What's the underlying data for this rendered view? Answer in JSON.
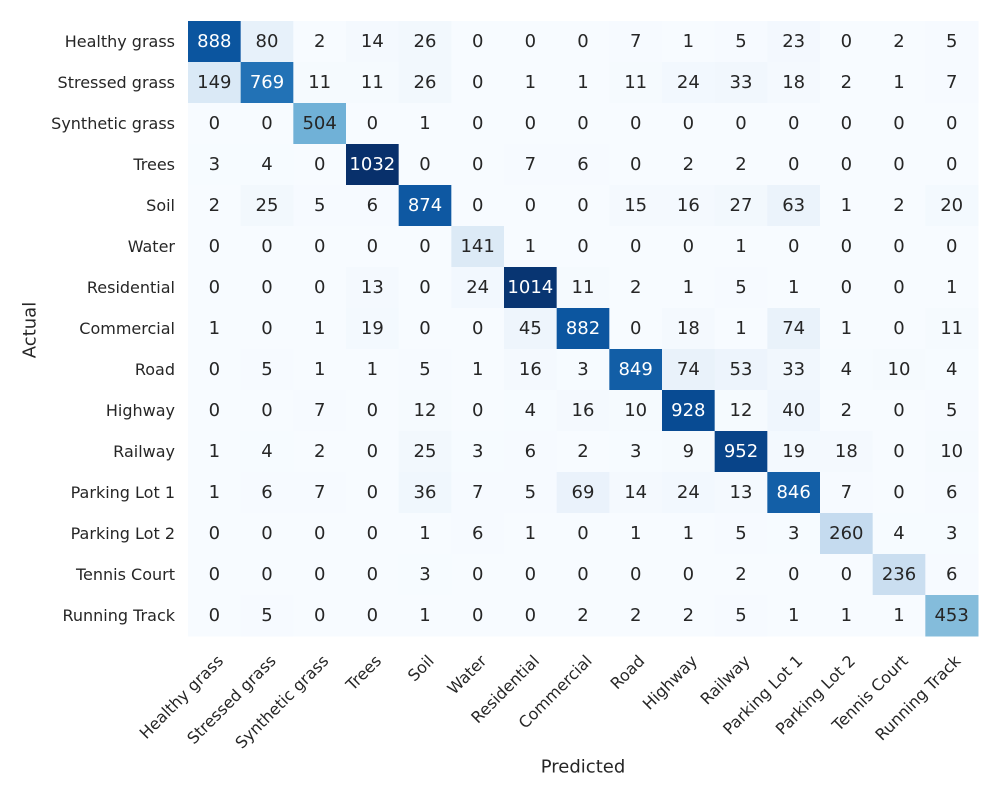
{
  "chart_data": {
    "type": "heatmap",
    "title": "",
    "xlabel": "Predicted",
    "ylabel": "Actual",
    "colormap": "Blues",
    "color_low": "#f7fbff",
    "color_high": "#08306b",
    "labels": [
      "Healthy grass",
      "Stressed grass",
      "Synthetic grass",
      "Trees",
      "Soil",
      "Water",
      "Residential",
      "Commercial",
      "Road",
      "Highway",
      "Railway",
      "Parking Lot 1",
      "Parking Lot 2",
      "Tennis Court",
      "Running Track"
    ],
    "matrix": [
      [
        888,
        80,
        2,
        14,
        26,
        0,
        0,
        0,
        7,
        1,
        5,
        23,
        0,
        2,
        5
      ],
      [
        149,
        769,
        11,
        11,
        26,
        0,
        1,
        1,
        11,
        24,
        33,
        18,
        2,
        1,
        7
      ],
      [
        0,
        0,
        504,
        0,
        1,
        0,
        0,
        0,
        0,
        0,
        0,
        0,
        0,
        0,
        0
      ],
      [
        3,
        4,
        0,
        1032,
        0,
        0,
        7,
        6,
        0,
        2,
        2,
        0,
        0,
        0,
        0
      ],
      [
        2,
        25,
        5,
        6,
        874,
        0,
        0,
        0,
        15,
        16,
        27,
        63,
        1,
        2,
        20
      ],
      [
        0,
        0,
        0,
        0,
        0,
        141,
        1,
        0,
        0,
        0,
        1,
        0,
        0,
        0,
        0
      ],
      [
        0,
        0,
        0,
        13,
        0,
        24,
        1014,
        11,
        2,
        1,
        5,
        1,
        0,
        0,
        1
      ],
      [
        1,
        0,
        1,
        19,
        0,
        0,
        45,
        882,
        0,
        18,
        1,
        74,
        1,
        0,
        11
      ],
      [
        0,
        5,
        1,
        1,
        5,
        1,
        16,
        3,
        849,
        74,
        53,
        33,
        4,
        10,
        4
      ],
      [
        0,
        0,
        7,
        0,
        12,
        0,
        4,
        16,
        10,
        928,
        12,
        40,
        2,
        0,
        5
      ],
      [
        1,
        4,
        2,
        0,
        25,
        3,
        6,
        2,
        3,
        9,
        952,
        19,
        18,
        0,
        10
      ],
      [
        1,
        6,
        7,
        0,
        36,
        7,
        5,
        69,
        14,
        24,
        13,
        846,
        7,
        0,
        6
      ],
      [
        0,
        0,
        0,
        0,
        1,
        6,
        1,
        0,
        1,
        1,
        5,
        3,
        260,
        4,
        3
      ],
      [
        0,
        0,
        0,
        0,
        3,
        0,
        0,
        0,
        0,
        0,
        2,
        0,
        0,
        236,
        6
      ],
      [
        0,
        5,
        0,
        0,
        1,
        0,
        0,
        2,
        2,
        2,
        5,
        1,
        1,
        1,
        453
      ]
    ],
    "vmin": 0,
    "vmax": 1032,
    "grid": false,
    "colorbar": false
  }
}
